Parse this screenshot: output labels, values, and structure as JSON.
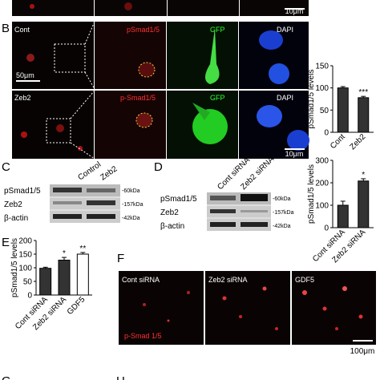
{
  "top_strip": {
    "scale_bar": "10μm"
  },
  "panel_b": {
    "label": "B",
    "rows": [
      "Cont",
      "Zeb2"
    ],
    "channels_row1": [
      "pSmad1/5",
      "GFP",
      "DAPI"
    ],
    "channels_row2": [
      "p-Smad1/5",
      "GFP",
      "DAPI"
    ],
    "scale_bar_low": "50μm",
    "scale_bar_high": "10μm"
  },
  "panel_c": {
    "label": "C",
    "lanes": [
      "Control",
      "Zeb2"
    ],
    "bands": [
      "pSmad1/5",
      "Zeb2",
      "β-actin"
    ],
    "sizes": [
      "-60kDa",
      "-157kDa",
      "-42kDa"
    ]
  },
  "panel_d": {
    "label": "D",
    "lanes": [
      "Cont siRNA",
      "Zeb2 siRNA"
    ],
    "bands": [
      "pSmad1/5",
      "Zeb2",
      "β-actin"
    ],
    "sizes": [
      "-60kDa",
      "-157kDa",
      "-42kDa"
    ]
  },
  "panel_e": {
    "label": "E"
  },
  "panel_f": {
    "label": "F",
    "conditions": [
      "Cont siRNA",
      "Zeb2 siRNA",
      "GDF5"
    ],
    "stain": "p-Smad 1/5",
    "scale_bar": "100μm"
  },
  "bottom": {
    "labels": [
      "G",
      "H"
    ]
  },
  "chart_data": [
    {
      "type": "bar",
      "y_label": "pSmad1/5 levels",
      "categories": [
        "Cont",
        "Zeb2"
      ],
      "values": [
        100,
        78
      ],
      "errors": [
        3,
        3
      ],
      "annotations": [
        null,
        "***"
      ],
      "colors": [
        "#333333",
        "#333333"
      ],
      "ylim": [
        0,
        150
      ],
      "yticks": [
        0,
        50,
        100,
        150
      ]
    },
    {
      "type": "bar",
      "y_label": "pSmad1/5 levels",
      "categories": [
        "Cont siRNA",
        "Zeb2 siRNA"
      ],
      "values": [
        100,
        208
      ],
      "errors": [
        18,
        10
      ],
      "annotations": [
        null,
        "*"
      ],
      "colors": [
        "#333333",
        "#333333"
      ],
      "ylim": [
        0,
        300
      ],
      "yticks": [
        0,
        100,
        200,
        300
      ]
    },
    {
      "type": "bar",
      "y_label": "pSmad1/5 levels",
      "categories": [
        "Cont siRNA",
        "Zeb2 siRNA",
        "GDF5"
      ],
      "values": [
        98,
        128,
        150
      ],
      "errors": [
        4,
        10,
        6
      ],
      "annotations": [
        null,
        "*",
        "**"
      ],
      "colors": [
        "#333333",
        "#333333",
        "#ffffff"
      ],
      "ylim": [
        0,
        200
      ],
      "yticks": [
        0,
        50,
        100,
        150,
        200
      ]
    }
  ]
}
